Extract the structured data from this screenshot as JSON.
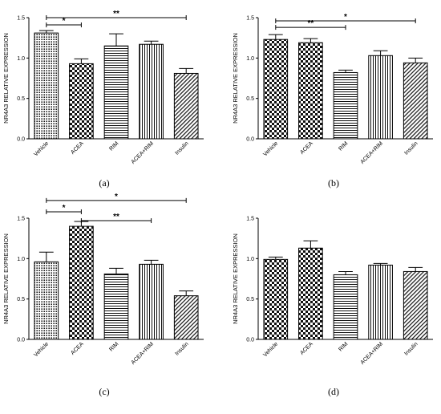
{
  "chart_data": [
    {
      "type": "bar",
      "panel": "(a)",
      "ylabel": "NR4A3 RELATIVE EXPRESSION",
      "xlabel": "",
      "categories": [
        "Vehicle",
        "ACEA",
        "RIM",
        "ACEA+RIM",
        "Insulin"
      ],
      "values": [
        1.31,
        0.93,
        1.15,
        1.17,
        0.81
      ],
      "errors": [
        0.03,
        0.06,
        0.15,
        0.04,
        0.06
      ],
      "patterns": [
        "dots",
        "checker",
        "hlines",
        "vlines",
        "diag"
      ],
      "ylim": [
        0,
        1.5
      ],
      "yticks": [
        "0.0",
        "0.5",
        "1.0",
        "1.5"
      ],
      "significance": [
        {
          "from": 0,
          "to": 1,
          "label": "*",
          "y": 1.41
        },
        {
          "from": 0,
          "to": 4,
          "label": "**",
          "y": 1.5
        }
      ]
    },
    {
      "type": "bar",
      "panel": "(b)",
      "ylabel": "NR4A3 RELATIVE EXPRESSION",
      "xlabel": "",
      "categories": [
        "Vehicle",
        "ACEA",
        "RIM",
        "ACEA+RIM",
        "Insulin"
      ],
      "values": [
        1.23,
        1.19,
        0.82,
        1.03,
        0.94
      ],
      "errors": [
        0.06,
        0.05,
        0.03,
        0.06,
        0.06
      ],
      "patterns": [
        "checker",
        "checker",
        "hlines",
        "vlines",
        "diag"
      ],
      "ylim": [
        0,
        1.5
      ],
      "yticks": [
        "0.0",
        "0.5",
        "1.0",
        "1.5"
      ],
      "significance": [
        {
          "from": 0,
          "to": 2,
          "label": "**",
          "y": 1.38
        },
        {
          "from": 0,
          "to": 4,
          "label": "*",
          "y": 1.46
        }
      ]
    },
    {
      "type": "bar",
      "panel": "(c)",
      "ylabel": "NR4A3 RELATIVE EXPRESSION",
      "xlabel": "",
      "categories": [
        "Vehicle",
        "ACEA",
        "RIM",
        "ACEA+RIM",
        "Insulin"
      ],
      "values": [
        0.96,
        1.4,
        0.81,
        0.93,
        0.54
      ],
      "errors": [
        0.12,
        0.06,
        0.07,
        0.05,
        0.06
      ],
      "patterns": [
        "dots",
        "checker",
        "hlines",
        "vlines",
        "diag"
      ],
      "ylim": [
        0,
        1.5
      ],
      "yticks": [
        "0.0",
        "0.5",
        "1.0",
        "1.5"
      ],
      "significance": [
        {
          "from": 0,
          "to": 1,
          "label": "*",
          "y": 1.58
        },
        {
          "from": 1,
          "to": 3,
          "label": "**",
          "y": 1.47
        },
        {
          "from": 0,
          "to": 4,
          "label": "*",
          "y": 1.72
        }
      ]
    },
    {
      "type": "bar",
      "panel": "(d)",
      "ylabel": "NR4A3 RELATIVE EXPRESSION",
      "xlabel": "",
      "categories": [
        "Vehicle",
        "ACEA",
        "RIM",
        "ACEA+RIM",
        "Insulin"
      ],
      "values": [
        0.99,
        1.13,
        0.8,
        0.92,
        0.84
      ],
      "errors": [
        0.03,
        0.09,
        0.04,
        0.02,
        0.05
      ],
      "patterns": [
        "checker",
        "checker",
        "hlines",
        "vlines",
        "diag"
      ],
      "ylim": [
        0,
        1.5
      ],
      "yticks": [
        "0.0",
        "0.5",
        "1.0",
        "1.5"
      ],
      "significance": []
    }
  ]
}
